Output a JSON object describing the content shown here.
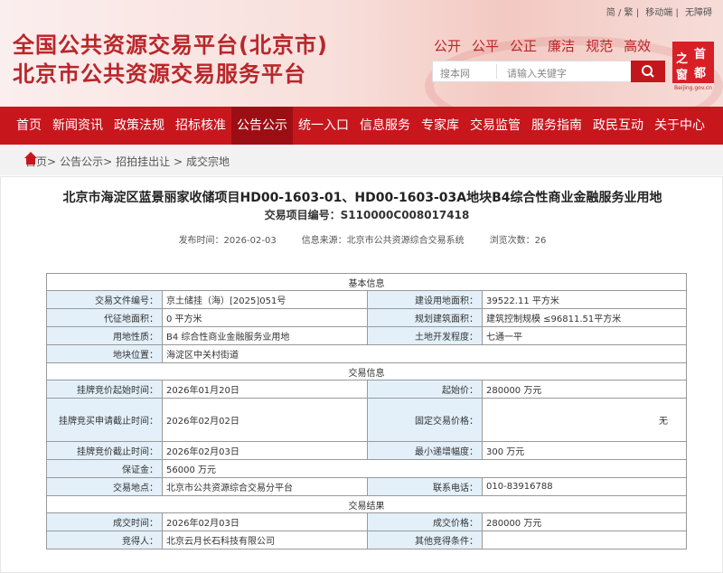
{
  "header": {
    "top_links": [
      "简 / 繁",
      "移动端",
      "无障碍"
    ],
    "title_lines": [
      "全国公共资源交易平台(北京市)",
      "北京市公共资源交易服务平台"
    ],
    "slogans": [
      "公开",
      "公平",
      "公正",
      "廉洁",
      "规范",
      "高效"
    ],
    "search": {
      "scope": "搜本网",
      "placeholder": "请输入关键字"
    },
    "logo": {
      "chars": [
        "首",
        "都",
        "之",
        "窗"
      ],
      "domain": "Beijing.gov.cn"
    }
  },
  "nav": {
    "items": [
      "首页",
      "新闻资讯",
      "政策法规",
      "招标核准",
      "公告公示",
      "统一入口",
      "信息服务",
      "专家库",
      "交易监管",
      "服务指南",
      "政民互动",
      "关于中心"
    ],
    "active": 4
  },
  "breadcrumb": [
    "首页>",
    "公告公示>",
    "招拍挂出让 >",
    "成交宗地"
  ],
  "article": {
    "title": "北京市海淀区蓝景丽家收储项目HD00-1603-01、HD00-1603-03A地块B4综合性商业金融服务业用地",
    "project_no": "交易项目编号：S110000C008017418",
    "meta": [
      "发布时间：2026-02-03",
      "信息来源：北京市公共资源综合交易系统",
      "浏览次数：26"
    ]
  },
  "table": {
    "sections": [
      {
        "title": "基本信息",
        "rows": [
          [
            "交易文件编号：",
            "京土储挂（海）[2025]051号",
            "建设用地面积：",
            "39522.11 平方米"
          ],
          [
            "代征地面积：",
            "0 平方米",
            "规划建筑面积：",
            "建筑控制规模 ≤96811.51平方米"
          ],
          [
            "用地性质：",
            "B4 综合性商业金融服务业用地",
            "土地开发程度：",
            "七通一平"
          ],
          [
            "地块位置：",
            "海淀区中关村街道"
          ]
        ]
      },
      {
        "title": "交易信息",
        "rows": [
          [
            "挂牌竞价起始时间：",
            "2026年01月20日",
            "起始价：",
            "280000 万元"
          ],
          [
            "挂牌竞买申请截止时间：",
            "2026年02月02日",
            "固定交易价格：",
            "无"
          ],
          [
            "挂牌竞价截止时间：",
            "2026年02月03日",
            "最小递增幅度：",
            "300 万元"
          ],
          [
            "保证金：",
            "56000 万元"
          ],
          [
            "交易地点：",
            "北京市公共资源综合交易分平台",
            "联系电话：",
            "010-83916788"
          ]
        ]
      },
      {
        "title": "交易结果",
        "rows": [
          [
            "成交时间：",
            "2026年02月03日",
            "成交价格：",
            "280000 万元"
          ],
          [
            "竞得人：",
            "北京云月长石科技有限公司",
            "其他竞得条件："
          ]
        ]
      }
    ]
  }
}
